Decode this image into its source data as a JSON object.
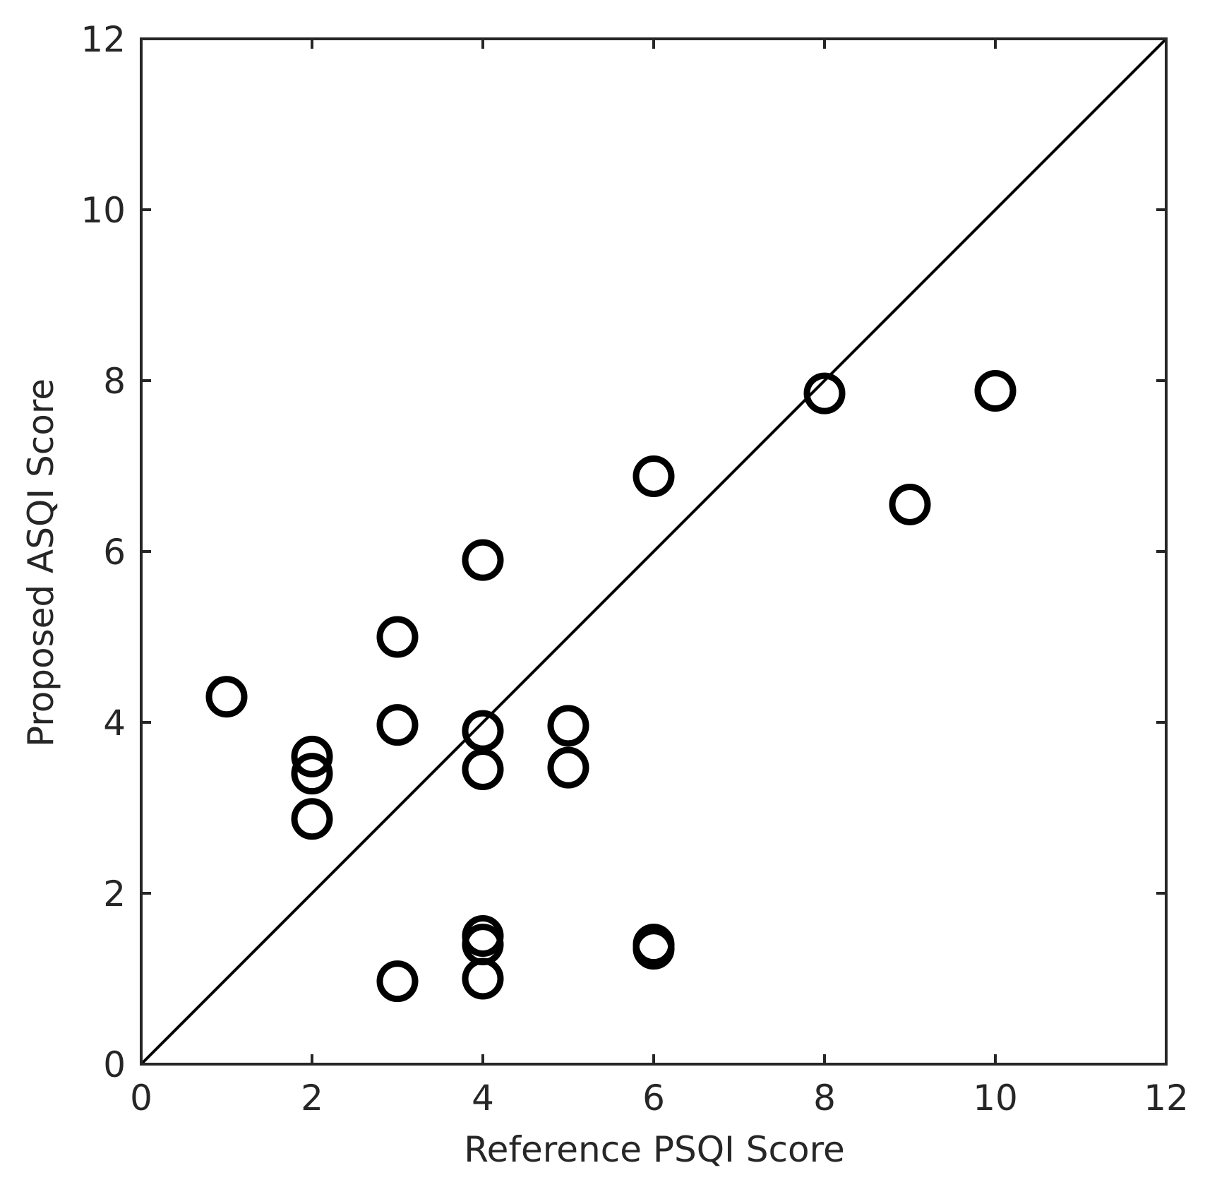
{
  "chart_data": {
    "type": "scatter",
    "title": "",
    "xlabel": "Reference PSQI Score",
    "ylabel": "Proposed ASQI Score",
    "xlim": [
      0,
      12
    ],
    "ylim": [
      0,
      12
    ],
    "xticks": [
      "0",
      "2",
      "4",
      "6",
      "8",
      "10",
      "12"
    ],
    "yticks": [
      "0",
      "2",
      "4",
      "6",
      "8",
      "10",
      "12"
    ],
    "grid": false,
    "legend": "none",
    "marker": "open-circle",
    "colors": {
      "marker": "#000000",
      "axis": "#262626",
      "reference_line": "#000000"
    },
    "reference_line": {
      "label": "",
      "x": [
        0,
        12
      ],
      "y": [
        0,
        12
      ]
    },
    "series": [
      {
        "name": "",
        "points": [
          {
            "x": 1,
            "y": 4.3
          },
          {
            "x": 2,
            "y": 3.6
          },
          {
            "x": 2,
            "y": 3.4
          },
          {
            "x": 2,
            "y": 2.87
          },
          {
            "x": 3,
            "y": 5.0
          },
          {
            "x": 3,
            "y": 3.97
          },
          {
            "x": 3,
            "y": 0.97
          },
          {
            "x": 4,
            "y": 5.9
          },
          {
            "x": 4,
            "y": 3.9
          },
          {
            "x": 4,
            "y": 3.45
          },
          {
            "x": 4,
            "y": 1.5
          },
          {
            "x": 4,
            "y": 1.4
          },
          {
            "x": 4,
            "y": 1.0
          },
          {
            "x": 5,
            "y": 3.96
          },
          {
            "x": 5,
            "y": 3.47
          },
          {
            "x": 6,
            "y": 6.88
          },
          {
            "x": 6,
            "y": 1.4
          },
          {
            "x": 6,
            "y": 1.35
          },
          {
            "x": 8,
            "y": 7.85
          },
          {
            "x": 9,
            "y": 6.55
          },
          {
            "x": 10,
            "y": 7.88
          }
        ]
      }
    ]
  }
}
